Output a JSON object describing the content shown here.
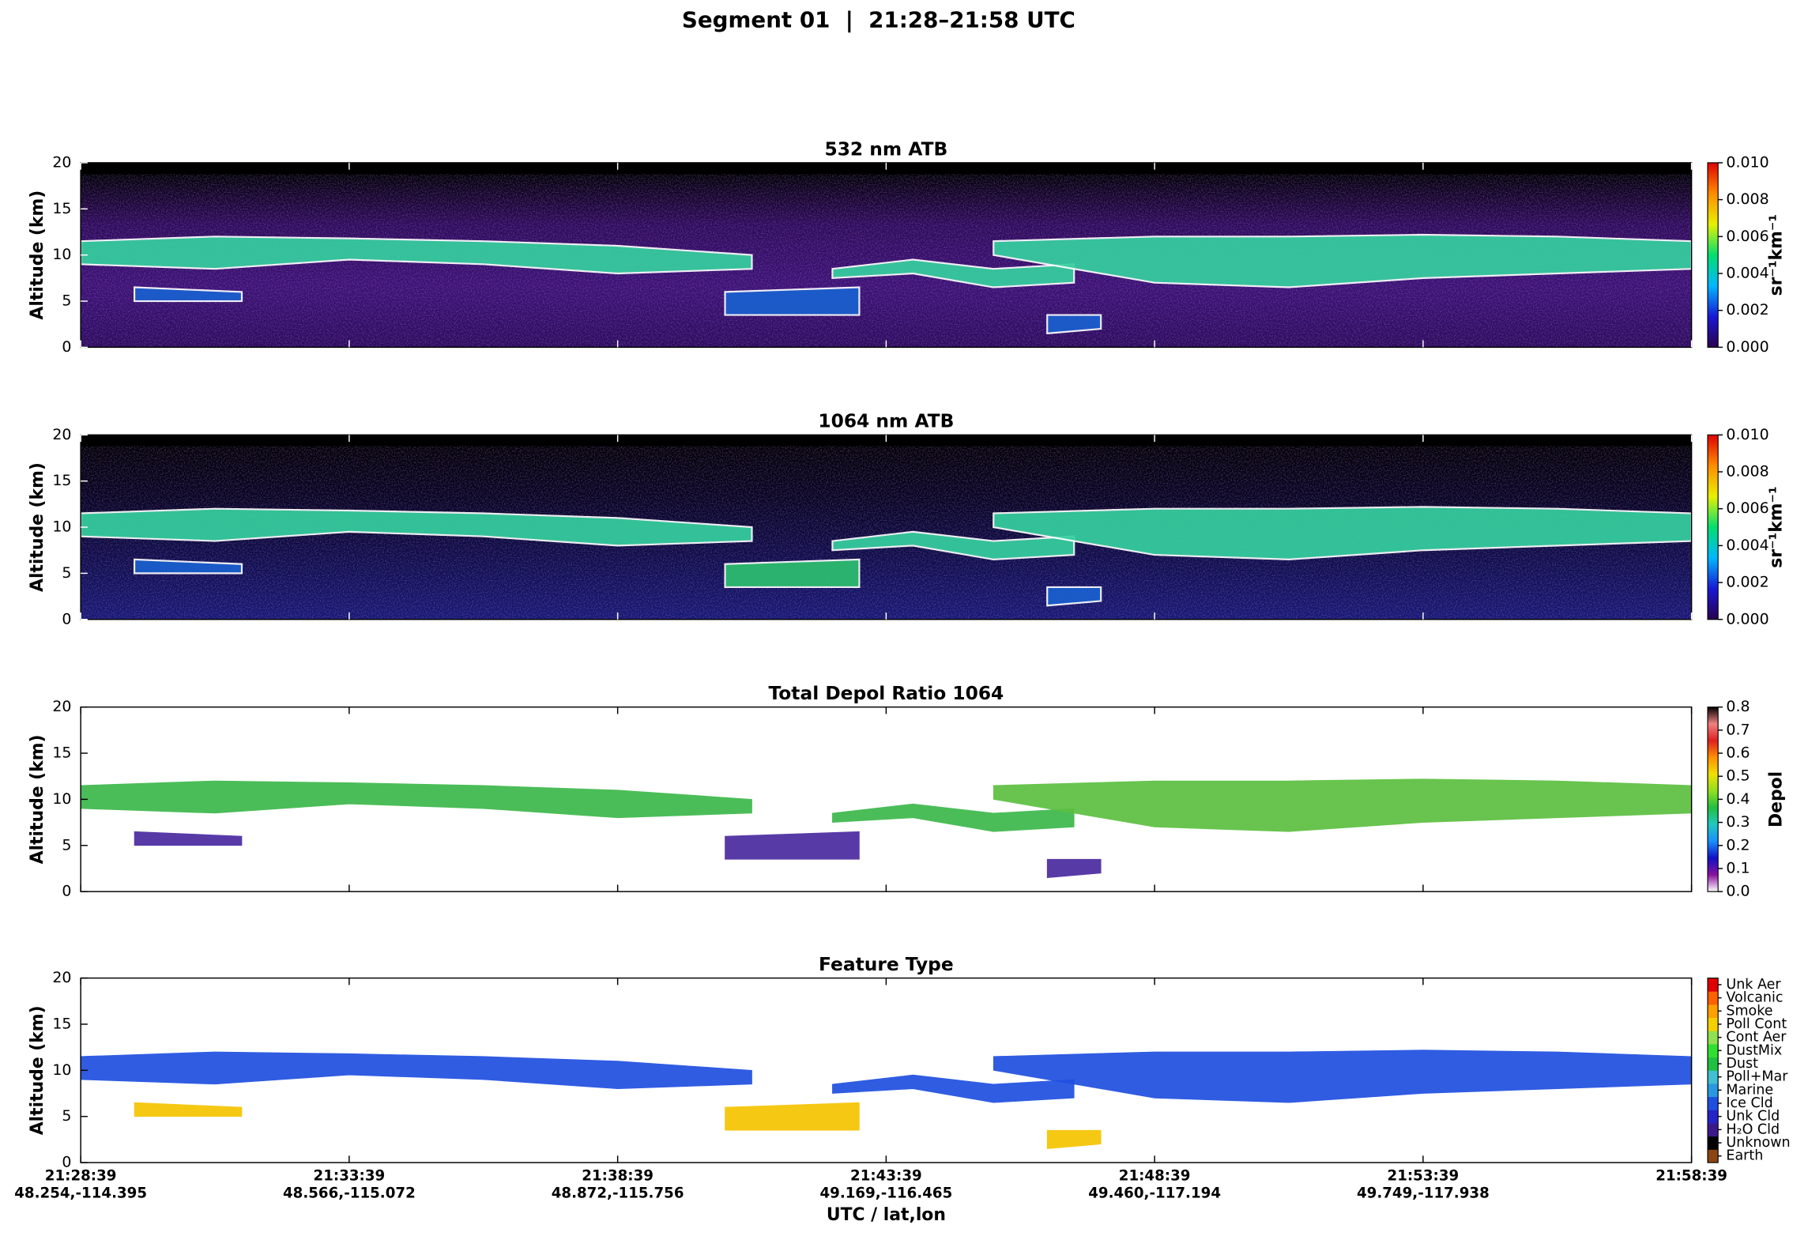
{
  "title": "Segment 01  |  21:28–21:58 UTC",
  "chart_data": [
    {
      "type": "curtain",
      "title": "532 nm ATB",
      "ylabel": "Altitude (km)",
      "ylim": [
        0,
        20
      ],
      "yticks": [
        0,
        5,
        10,
        15,
        20
      ],
      "xlim": [
        "21:28:39",
        "21:58:39"
      ],
      "background": [
        "#000000",
        "#2c0a55",
        "#3a1070",
        "#2a0a58"
      ],
      "edge": "#ffffff",
      "colorbar": {
        "label": "sr⁻¹km⁻¹",
        "lim": [
          0,
          0.01
        ],
        "ticks": [
          {
            "value": 0,
            "label": "0.000"
          },
          {
            "value": 0.002,
            "label": "0.002"
          },
          {
            "value": 0.004,
            "label": "0.004"
          },
          {
            "value": 0.006,
            "label": "0.006"
          },
          {
            "value": 0.008,
            "label": "0.008"
          },
          {
            "value": 0.01,
            "label": "0.010"
          }
        ],
        "colors": [
          "#2a0050",
          "#1818d8",
          "#00b8ff",
          "#00e070",
          "#e8f000",
          "#ff8c00",
          "#e00000"
        ]
      },
      "layers": [
        {
          "x": [
            "21:28:39",
            "21:31:09",
            "21:33:39",
            "21:36:09",
            "21:38:39",
            "21:41:09"
          ],
          "top": [
            11.5,
            12,
            11.8,
            11.5,
            11,
            10
          ],
          "base": [
            9,
            8.5,
            9.5,
            9,
            8,
            8.5
          ],
          "color": "#36d0a0"
        },
        {
          "x": [
            "21:42:39",
            "21:44:09",
            "21:45:39",
            "21:47:09"
          ],
          "top": [
            8.5,
            9.5,
            8.5,
            9
          ],
          "base": [
            7.5,
            8,
            6.5,
            7
          ],
          "color": "#36d0a0"
        },
        {
          "x": [
            "21:45:39",
            "21:48:39",
            "21:51:09",
            "21:53:39",
            "21:56:09",
            "21:58:39"
          ],
          "top": [
            11.5,
            12,
            12,
            12.2,
            12,
            11.5
          ],
          "base": [
            10,
            7,
            6.5,
            7.5,
            8,
            8.5
          ],
          "color": "#36d0a0"
        },
        {
          "x": [
            "21:29:39",
            "21:31:39"
          ],
          "top": [
            6.5,
            6
          ],
          "base": [
            5,
            5
          ],
          "color": "#1a60d0"
        },
        {
          "x": [
            "21:40:39",
            "21:43:09"
          ],
          "top": [
            6,
            6.5
          ],
          "base": [
            3.5,
            3.5
          ],
          "color": "#1a60d0"
        },
        {
          "x": [
            "21:46:39",
            "21:47:39"
          ],
          "top": [
            3.5,
            3.5
          ],
          "base": [
            1.5,
            2
          ],
          "color": "#1a60d0"
        }
      ]
    },
    {
      "type": "curtain",
      "title": "1064 nm ATB",
      "ylabel": "Altitude (km)",
      "ylim": [
        0,
        20
      ],
      "yticks": [
        0,
        5,
        10,
        15,
        20
      ],
      "xlim": [
        "21:28:39",
        "21:58:39"
      ],
      "background": [
        "#000000",
        "#05031a",
        "#0d0c45",
        "#151870"
      ],
      "edge": "#ffffff",
      "colorbar": {
        "label": "sr⁻¹km⁻¹",
        "lim": [
          0,
          0.01
        ],
        "ticks": [
          {
            "value": 0,
            "label": "0.000"
          },
          {
            "value": 0.002,
            "label": "0.002"
          },
          {
            "value": 0.004,
            "label": "0.004"
          },
          {
            "value": 0.006,
            "label": "0.006"
          },
          {
            "value": 0.008,
            "label": "0.008"
          },
          {
            "value": 0.01,
            "label": "0.010"
          }
        ],
        "colors": [
          "#2a0050",
          "#1818d8",
          "#00b8ff",
          "#00e070",
          "#e8f000",
          "#ff8c00",
          "#e00000"
        ]
      },
      "layers": [
        {
          "x": [
            "21:28:39",
            "21:31:09",
            "21:33:39",
            "21:36:09",
            "21:38:39",
            "21:41:09"
          ],
          "top": [
            11.5,
            12,
            11.8,
            11.5,
            11,
            10
          ],
          "base": [
            9,
            8.5,
            9.5,
            9,
            8,
            8.5
          ],
          "color": "#36d0a0"
        },
        {
          "x": [
            "21:42:39",
            "21:44:09",
            "21:45:39",
            "21:47:09"
          ],
          "top": [
            8.5,
            9.5,
            8.5,
            9
          ],
          "base": [
            7.5,
            8,
            6.5,
            7
          ],
          "color": "#36d0a0"
        },
        {
          "x": [
            "21:45:39",
            "21:48:39",
            "21:51:09",
            "21:53:39",
            "21:56:09",
            "21:58:39"
          ],
          "top": [
            11.5,
            12,
            12,
            12.2,
            12,
            11.5
          ],
          "base": [
            10,
            7,
            6.5,
            7.5,
            8,
            8.5
          ],
          "color": "#36d0a0"
        },
        {
          "x": [
            "21:29:39",
            "21:31:39"
          ],
          "top": [
            6.5,
            6
          ],
          "base": [
            5,
            5
          ],
          "color": "#1a60d0"
        },
        {
          "x": [
            "21:40:39",
            "21:43:09"
          ],
          "top": [
            6,
            6.5
          ],
          "base": [
            3.5,
            3.5
          ],
          "color": "#2cc070"
        },
        {
          "x": [
            "21:46:39",
            "21:47:39"
          ],
          "top": [
            3.5,
            3.5
          ],
          "base": [
            1.5,
            2
          ],
          "color": "#1a60d0"
        }
      ]
    },
    {
      "type": "curtain",
      "title": "Total Depol Ratio 1064",
      "ylabel": "Altitude (km)",
      "ylim": [
        0,
        20
      ],
      "yticks": [
        0,
        5,
        10,
        15,
        20
      ],
      "xlim": [
        "21:28:39",
        "21:58:39"
      ],
      "background": [
        "#ffffff",
        "#ffffff"
      ],
      "colorbar": {
        "label": "Depol",
        "lim": [
          0,
          0.8
        ],
        "ticks": [
          {
            "value": 0,
            "label": "0.0"
          },
          {
            "value": 0.1,
            "label": "0.1"
          },
          {
            "value": 0.2,
            "label": "0.2"
          },
          {
            "value": 0.3,
            "label": "0.3"
          },
          {
            "value": 0.4,
            "label": "0.4"
          },
          {
            "value": 0.5,
            "label": "0.5"
          },
          {
            "value": 0.6,
            "label": "0.6"
          },
          {
            "value": 0.7,
            "label": "0.7"
          },
          {
            "value": 0.8,
            "label": "0.8"
          }
        ],
        "colors": [
          "#ffffff",
          "#8a10a0",
          "#1010c8",
          "#1890ff",
          "#20c8c0",
          "#20c040",
          "#90e020",
          "#f0e000",
          "#ff9000",
          "#e02020",
          "#f08080",
          "#000000"
        ]
      },
      "layers": [
        {
          "x": [
            "21:28:39",
            "21:31:09",
            "21:33:39",
            "21:36:09",
            "21:38:39",
            "21:41:09"
          ],
          "top": [
            11.5,
            12,
            11.8,
            11.5,
            11,
            10
          ],
          "base": [
            9,
            8.5,
            9.5,
            9,
            8,
            8.5
          ],
          "color": "#3cb84a"
        },
        {
          "x": [
            "21:42:39",
            "21:44:09",
            "21:45:39",
            "21:47:09"
          ],
          "top": [
            8.5,
            9.5,
            8.5,
            9
          ],
          "base": [
            7.5,
            8,
            6.5,
            7
          ],
          "color": "#3cb84a"
        },
        {
          "x": [
            "21:45:39",
            "21:48:39",
            "21:51:09",
            "21:53:39",
            "21:56:09",
            "21:58:39"
          ],
          "top": [
            11.5,
            12,
            12,
            12.2,
            12,
            11.5
          ],
          "base": [
            10,
            7,
            6.5,
            7.5,
            8,
            8.5
          ],
          "color": "#5cc040"
        },
        {
          "x": [
            "21:29:39",
            "21:31:39"
          ],
          "top": [
            6.5,
            6
          ],
          "base": [
            5,
            5
          ],
          "color": "#4a2aa0"
        },
        {
          "x": [
            "21:40:39",
            "21:43:09"
          ],
          "top": [
            6,
            6.5
          ],
          "base": [
            3.5,
            3.5
          ],
          "color": "#4a2aa0"
        },
        {
          "x": [
            "21:46:39",
            "21:47:39"
          ],
          "top": [
            3.5,
            3.5
          ],
          "base": [
            1.5,
            2
          ],
          "color": "#4a2aa0"
        }
      ]
    },
    {
      "type": "curtain",
      "title": "Feature Type",
      "ylabel": "Altitude (km)",
      "ylim": [
        0,
        20
      ],
      "yticks": [
        0,
        5,
        10,
        15,
        20
      ],
      "xlim": [
        "21:28:39",
        "21:58:39"
      ],
      "background": [
        "#ffffff",
        "#ffffff"
      ],
      "xticks": [
        "21:28:39",
        "21:33:39",
        "21:38:39",
        "21:43:39",
        "21:48:39",
        "21:53:39",
        "21:58:39"
      ],
      "xtick_positions": [
        "48.254,-114.395",
        "48.566,-115.072",
        "48.872,-115.756",
        "49.169,-116.465",
        "49.460,-117.194",
        "49.749,-117.938",
        ""
      ],
      "xlabel": "UTC / lat,lon",
      "colorbar": {
        "categories": [
          "Earth",
          "Unknown",
          "H₂O Cld",
          "Unk Cld",
          "Ice Cld",
          "Marine",
          "Poll+Mar",
          "Dust",
          "DustMix",
          "Cont Aer",
          "Poll Cont",
          "Smoke",
          "Volcanic",
          "Unk Aer"
        ],
        "colors": [
          "#8b4513",
          "#000000",
          "#3a1a8a",
          "#2424c8",
          "#1f4fe0",
          "#2898e0",
          "#40c0d0",
          "#20c040",
          "#30e030",
          "#90e050",
          "#f5d000",
          "#ffa000",
          "#ff6000",
          "#e00000"
        ]
      },
      "layers": [
        {
          "x": [
            "21:28:39",
            "21:31:09",
            "21:33:39",
            "21:36:09",
            "21:38:39",
            "21:41:09"
          ],
          "top": [
            11.5,
            12,
            11.8,
            11.5,
            11,
            10
          ],
          "base": [
            9,
            8.5,
            9.5,
            9,
            8,
            8.5
          ],
          "color": "#1f4fe0"
        },
        {
          "x": [
            "21:42:39",
            "21:44:09",
            "21:45:39",
            "21:47:09"
          ],
          "top": [
            8.5,
            9.5,
            8.5,
            9
          ],
          "base": [
            7.5,
            8,
            6.5,
            7
          ],
          "color": "#1f4fe0"
        },
        {
          "x": [
            "21:45:39",
            "21:48:39",
            "21:51:09",
            "21:53:39",
            "21:56:09",
            "21:58:39"
          ],
          "top": [
            11.5,
            12,
            12,
            12.2,
            12,
            11.5
          ],
          "base": [
            10,
            7,
            6.5,
            7.5,
            8,
            8.5
          ],
          "color": "#1f4fe0"
        },
        {
          "x": [
            "21:29:39",
            "21:31:39"
          ],
          "top": [
            6.5,
            6
          ],
          "base": [
            5,
            5
          ],
          "color": "#f5c400"
        },
        {
          "x": [
            "21:40:39",
            "21:43:09"
          ],
          "top": [
            6,
            6.5
          ],
          "base": [
            3.5,
            3.5
          ],
          "color": "#f5c400"
        },
        {
          "x": [
            "21:46:39",
            "21:47:39"
          ],
          "top": [
            3.5,
            3.5
          ],
          "base": [
            1.5,
            2
          ],
          "color": "#f5c400"
        }
      ]
    }
  ]
}
